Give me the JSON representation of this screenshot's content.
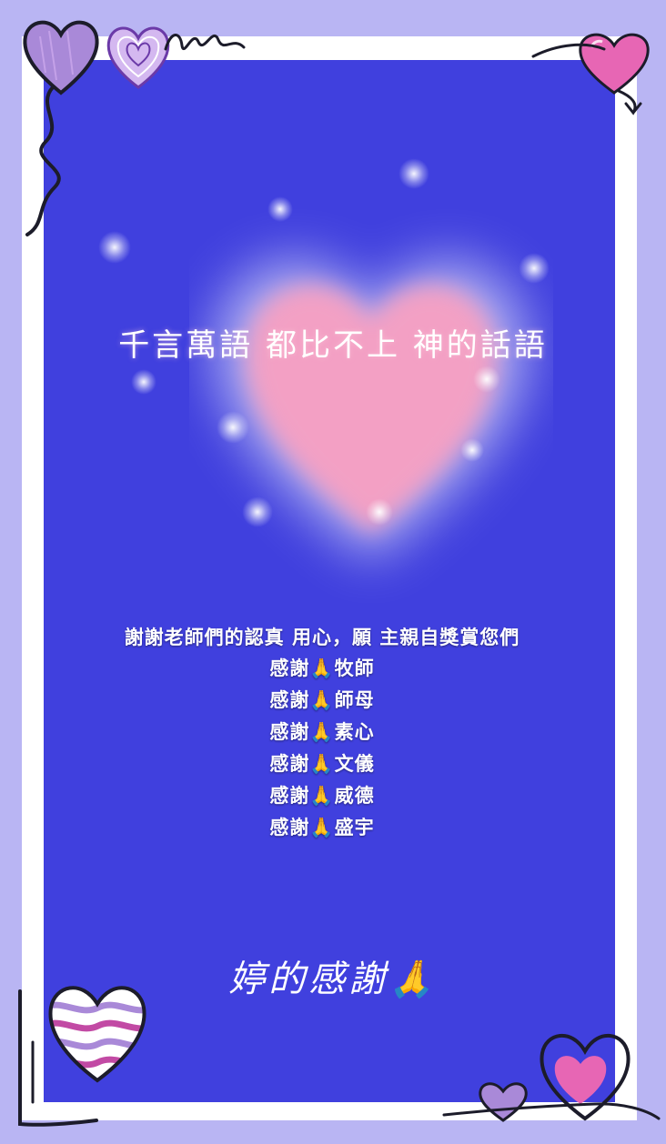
{
  "title": "千言萬語 都比不上 神的話語",
  "message": "謝謝老師們的認真 用心，願 主親自獎賞您們",
  "thanks": [
    "感謝🙏牧師",
    "感謝🙏師母",
    "感謝🙏素心",
    "感謝🙏文儀",
    "感謝🙏威德",
    "感謝🙏盛宇"
  ],
  "signature": "婷的感謝🙏",
  "colors": {
    "background": "#b9b5f3",
    "card": "#4040de",
    "glow_heart": "#f3a0c4",
    "heart_pink": "#e766b4",
    "heart_purple": "#a989d8"
  }
}
